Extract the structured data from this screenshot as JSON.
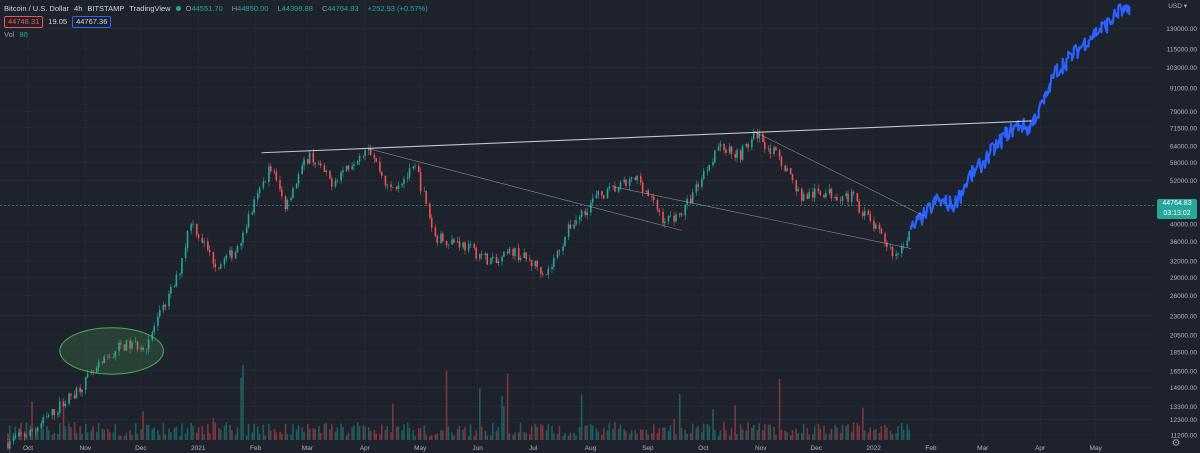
{
  "header": {
    "symbol": "Bitcoin / U.S. Dollar",
    "interval": "4h",
    "exchange": "BITSTAMP",
    "source": "TradingView",
    "status_color": "#26a69a",
    "open_label": "O",
    "open": "44551.70",
    "high_label": "H",
    "high": "44850.00",
    "low_label": "L",
    "low": "44398.88",
    "close_label": "C",
    "close": "44764.83",
    "change": "+252.93 (+0.57%)"
  },
  "quote": {
    "bid": "44748.31",
    "spread": "19.05",
    "ask": "44767.36"
  },
  "volume": {
    "label": "Vol",
    "value": "80"
  },
  "axis": {
    "currency": "USD",
    "last_price": "44764.83",
    "countdown": "03:13:02",
    "price_ticks": [
      "130000.00",
      "115000.00",
      "103000.00",
      "91000.00",
      "79000.00",
      "71500.00",
      "64000.00",
      "58000.00",
      "52000.00",
      "46000.00",
      "40000.00",
      "36000.00",
      "32000.00",
      "29000.00",
      "26000.00",
      "23000.00",
      "20500.00",
      "18500.00",
      "16500.00",
      "14900.00",
      "13300.00",
      "12300.00",
      "11200.00"
    ],
    "time_ticks": [
      "Oct",
      "Nov",
      "Dec",
      "2021",
      "Feb",
      "Mar",
      "Apr",
      "May",
      "Jun",
      "Jul",
      "Aug",
      "Sep",
      "Oct",
      "Nov",
      "Dec",
      "2022",
      "Feb",
      "Mar",
      "Apr",
      "May"
    ]
  },
  "colors": {
    "background": "#1e222d",
    "up": "#26a69a",
    "down": "#ef5350",
    "projection": "#2962ff",
    "trendline": "#d1d4dc",
    "ellipse": "#4caf50"
  },
  "chart_data": {
    "type": "line",
    "y_scale": "log",
    "ylim": [
      11000,
      150000
    ],
    "x_range": [
      "2020-10-01",
      "2022-06-01"
    ],
    "grid": true,
    "series": [
      {
        "kind": "candlestick",
        "x": [
          "2020-10-01",
          "2020-10-15",
          "2020-11-01",
          "2020-11-15",
          "2020-12-01",
          "2020-12-15",
          "2021-01-01",
          "2021-01-08",
          "2021-01-22",
          "2021-02-01",
          "2021-02-20",
          "2021-02-28",
          "2021-03-13",
          "2021-03-25",
          "2021-04-14",
          "2021-04-25",
          "2021-05-10",
          "2021-05-20",
          "2021-06-01",
          "2021-06-22",
          "2021-07-01",
          "2021-07-20",
          "2021-08-01",
          "2021-08-15",
          "2021-09-07",
          "2021-09-21",
          "2021-10-01",
          "2021-10-20",
          "2021-11-01",
          "2021-11-10",
          "2021-11-25",
          "2021-12-04",
          "2021-12-15",
          "2022-01-01",
          "2022-01-10",
          "2022-01-24",
          "2022-02-01"
        ],
        "values": [
          10700,
          11500,
          13700,
          16000,
          19200,
          19300,
          29000,
          41000,
          31000,
          34000,
          57000,
          45000,
          61000,
          51500,
          64500,
          49000,
          56000,
          37000,
          36000,
          31500,
          34000,
          29800,
          39500,
          47000,
          52700,
          40700,
          43000,
          64000,
          61000,
          69000,
          57000,
          47000,
          48500,
          47000,
          40700,
          33000,
          38500
        ]
      },
      {
        "kind": "projection",
        "x": [
          "2022-02-01",
          "2022-02-10",
          "2022-02-15",
          "2022-02-25",
          "2022-03-05",
          "2022-03-15",
          "2022-03-25",
          "2022-04-01",
          "2022-04-06",
          "2022-04-15",
          "2022-04-20",
          "2022-05-01",
          "2022-05-10",
          "2022-05-20",
          "2022-05-25",
          "2022-05-31"
        ],
        "values": [
          38500,
          43000,
          46000,
          45000,
          53000,
          60000,
          69000,
          73000,
          71000,
          85000,
          100000,
          112000,
          125000,
          135000,
          145000,
          142000
        ]
      }
    ],
    "annotations": [
      {
        "kind": "horizontal-resistance",
        "from": [
          "2021-02-15",
          61500
        ],
        "to": [
          "2022-04-07",
          74500
        ]
      },
      {
        "kind": "channel-line",
        "from": [
          "2021-04-14",
          63000
        ],
        "to": [
          "2021-09-30",
          38500
        ]
      },
      {
        "kind": "channel-line",
        "from": [
          "2021-08-25",
          50000
        ],
        "to": [
          "2022-02-01",
          34500
        ]
      },
      {
        "kind": "channel-line",
        "from": [
          "2021-11-08",
          70000
        ],
        "to": [
          "2022-02-08",
          42000
        ]
      },
      {
        "kind": "ellipse",
        "center": [
          "2020-11-26",
          18600
        ],
        "rx_days": 28,
        "ry_ratio": 1.15
      }
    ],
    "volume_scale_max": 100
  }
}
